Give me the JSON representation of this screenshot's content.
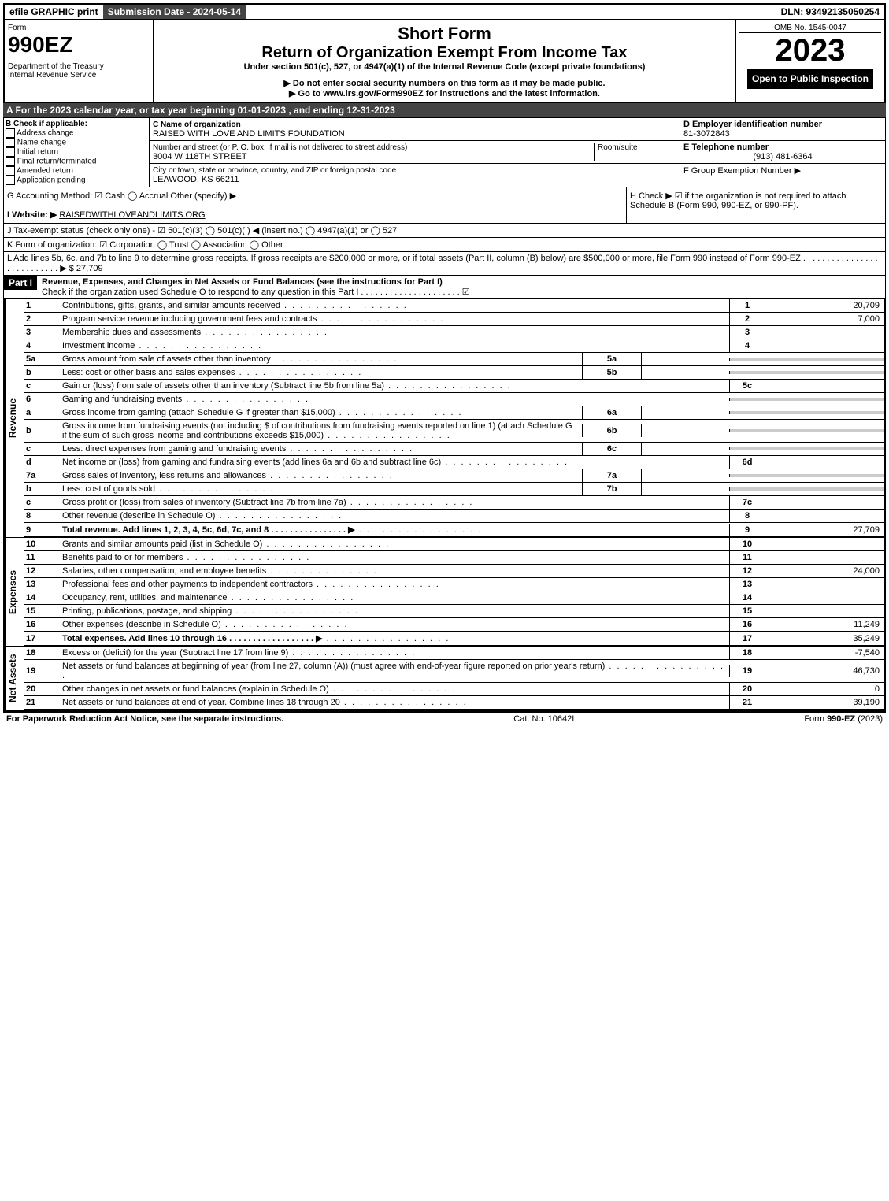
{
  "topbar": {
    "print": "efile GRAPHIC print",
    "sub_label": "Submission Date - 2024-05-14",
    "dln_label": "DLN: 93492135050254"
  },
  "header": {
    "form_label": "Form",
    "form_number": "990EZ",
    "dept": "Department of the Treasury\nInternal Revenue Service",
    "title1": "Short Form",
    "title2": "Return of Organization Exempt From Income Tax",
    "subtitle": "Under section 501(c), 527, or 4947(a)(1) of the Internal Revenue Code (except private foundations)",
    "note1": "▶ Do not enter social security numbers on this form as it may be made public.",
    "note2": "▶ Go to www.irs.gov/Form990EZ for instructions and the latest information.",
    "omb": "OMB No. 1545-0047",
    "year": "2023",
    "inspection": "Open to Public Inspection"
  },
  "section_a": "A  For the 2023 calendar year, or tax year beginning 01-01-2023 , and ending 12-31-2023",
  "box_b": {
    "label": "B  Check if applicable:",
    "opts": [
      "Address change",
      "Name change",
      "Initial return",
      "Final return/terminated",
      "Amended return",
      "Application pending"
    ]
  },
  "box_c": {
    "name_label": "C Name of organization",
    "name": "RAISED WITH LOVE AND LIMITS FOUNDATION",
    "street_label": "Number and street (or P. O. box, if mail is not delivered to street address)",
    "room_label": "Room/suite",
    "street": "3004 W 118TH STREET",
    "city_label": "City or town, state or province, country, and ZIP or foreign postal code",
    "city": "LEAWOOD, KS  66211"
  },
  "box_de": {
    "d_label": "D Employer identification number",
    "d_val": "81-3072843",
    "e_label": "E Telephone number",
    "e_val": "(913) 481-6364",
    "f_label": "F Group Exemption Number   ▶"
  },
  "line_g": "G Accounting Method:   ☑ Cash  ◯ Accrual   Other (specify) ▶",
  "line_h": "H   Check ▶ ☑ if the organization is not required to attach Schedule B (Form 990, 990-EZ, or 990-PF).",
  "line_i_label": "I Website: ▶",
  "line_i_val": "RAISEDWITHLOVEANDLIMITS.ORG",
  "line_j": "J Tax-exempt status (check only one) - ☑ 501(c)(3) ◯ 501(c)(  ) ◀ (insert no.) ◯ 4947(a)(1) or ◯ 527",
  "line_k": "K Form of organization:  ☑ Corporation  ◯ Trust  ◯ Association  ◯ Other",
  "line_l": "L Add lines 5b, 6c, and 7b to line 9 to determine gross receipts. If gross receipts are $200,000 or more, or if total assets (Part II, column (B) below) are $500,000 or more, file Form 990 instead of Form 990-EZ  .  .  .  .  .  .  .  .  .  .  .  .  .  .  .  .  .  .  .  .  .  .  .  .  .  .  .  ▶ $ 27,709",
  "part1": {
    "label": "Part I",
    "title": "Revenue, Expenses, and Changes in Net Assets or Fund Balances (see the instructions for Part I)",
    "check_line": "Check if the organization used Schedule O to respond to any question in this Part I  .  .  .  .  .  .  .  .  .  .  .  .  .  .  .  .  .  .  .  .  .  ☑"
  },
  "side_labels": {
    "revenue": "Revenue",
    "expenses": "Expenses",
    "netassets": "Net Assets"
  },
  "rows": [
    {
      "n": "1",
      "d": "Contributions, gifts, grants, and similar amounts received",
      "ln": "1",
      "amt": "20,709"
    },
    {
      "n": "2",
      "d": "Program service revenue including government fees and contracts",
      "ln": "2",
      "amt": "7,000"
    },
    {
      "n": "3",
      "d": "Membership dues and assessments",
      "ln": "3",
      "amt": ""
    },
    {
      "n": "4",
      "d": "Investment income",
      "ln": "4",
      "amt": ""
    },
    {
      "n": "5a",
      "d": "Gross amount from sale of assets other than inventory",
      "sb": "5a",
      "gray": true
    },
    {
      "n": "b",
      "d": "Less: cost or other basis and sales expenses",
      "sb": "5b",
      "gray": true
    },
    {
      "n": "c",
      "d": "Gain or (loss) from sale of assets other than inventory (Subtract line 5b from line 5a)",
      "ln": "5c",
      "amt": ""
    },
    {
      "n": "6",
      "d": "Gaming and fundraising events",
      "hdr": true
    },
    {
      "n": "a",
      "d": "Gross income from gaming (attach Schedule G if greater than $15,000)",
      "sb": "6a",
      "gray": true
    },
    {
      "n": "b",
      "d": "Gross income from fundraising events (not including $                  of contributions from fundraising events reported on line 1) (attach Schedule G if the sum of such gross income and contributions exceeds $15,000)",
      "sb": "6b",
      "gray": true
    },
    {
      "n": "c",
      "d": "Less: direct expenses from gaming and fundraising events",
      "sb": "6c",
      "gray": true
    },
    {
      "n": "d",
      "d": "Net income or (loss) from gaming and fundraising events (add lines 6a and 6b and subtract line 6c)",
      "ln": "6d",
      "amt": ""
    },
    {
      "n": "7a",
      "d": "Gross sales of inventory, less returns and allowances",
      "sb": "7a",
      "gray": true
    },
    {
      "n": "b",
      "d": "Less: cost of goods sold",
      "sb": "7b",
      "gray": true
    },
    {
      "n": "c",
      "d": "Gross profit or (loss) from sales of inventory (Subtract line 7b from line 7a)",
      "ln": "7c",
      "amt": ""
    },
    {
      "n": "8",
      "d": "Other revenue (describe in Schedule O)",
      "ln": "8",
      "amt": ""
    },
    {
      "n": "9",
      "d": "Total revenue. Add lines 1, 2, 3, 4, 5c, 6d, 7c, and 8   .  .  .  .  .  .  .  .  .  .  .  .  .  .  .  .  ▶",
      "ln": "9",
      "amt": "27,709",
      "bold": true
    }
  ],
  "exp_rows": [
    {
      "n": "10",
      "d": "Grants and similar amounts paid (list in Schedule O)",
      "ln": "10",
      "amt": ""
    },
    {
      "n": "11",
      "d": "Benefits paid to or for members",
      "ln": "11",
      "amt": ""
    },
    {
      "n": "12",
      "d": "Salaries, other compensation, and employee benefits",
      "ln": "12",
      "amt": "24,000"
    },
    {
      "n": "13",
      "d": "Professional fees and other payments to independent contractors",
      "ln": "13",
      "amt": ""
    },
    {
      "n": "14",
      "d": "Occupancy, rent, utilities, and maintenance",
      "ln": "14",
      "amt": ""
    },
    {
      "n": "15",
      "d": "Printing, publications, postage, and shipping",
      "ln": "15",
      "amt": ""
    },
    {
      "n": "16",
      "d": "Other expenses (describe in Schedule O)",
      "ln": "16",
      "amt": "11,249"
    },
    {
      "n": "17",
      "d": "Total expenses. Add lines 10 through 16   .  .  .  .  .  .  .  .  .  .  .  .  .  .  .  .  .  .  ▶",
      "ln": "17",
      "amt": "35,249",
      "bold": true
    }
  ],
  "na_rows": [
    {
      "n": "18",
      "d": "Excess or (deficit) for the year (Subtract line 17 from line 9)",
      "ln": "18",
      "amt": "-7,540"
    },
    {
      "n": "19",
      "d": "Net assets or fund balances at beginning of year (from line 27, column (A)) (must agree with end-of-year figure reported on prior year's return)",
      "ln": "19",
      "amt": "46,730"
    },
    {
      "n": "20",
      "d": "Other changes in net assets or fund balances (explain in Schedule O)",
      "ln": "20",
      "amt": "0"
    },
    {
      "n": "21",
      "d": "Net assets or fund balances at end of year. Combine lines 18 through 20",
      "ln": "21",
      "amt": "39,190"
    }
  ],
  "footer": {
    "left": "For Paperwork Reduction Act Notice, see the separate instructions.",
    "mid": "Cat. No. 10642I",
    "right": "Form 990-EZ (2023)"
  }
}
